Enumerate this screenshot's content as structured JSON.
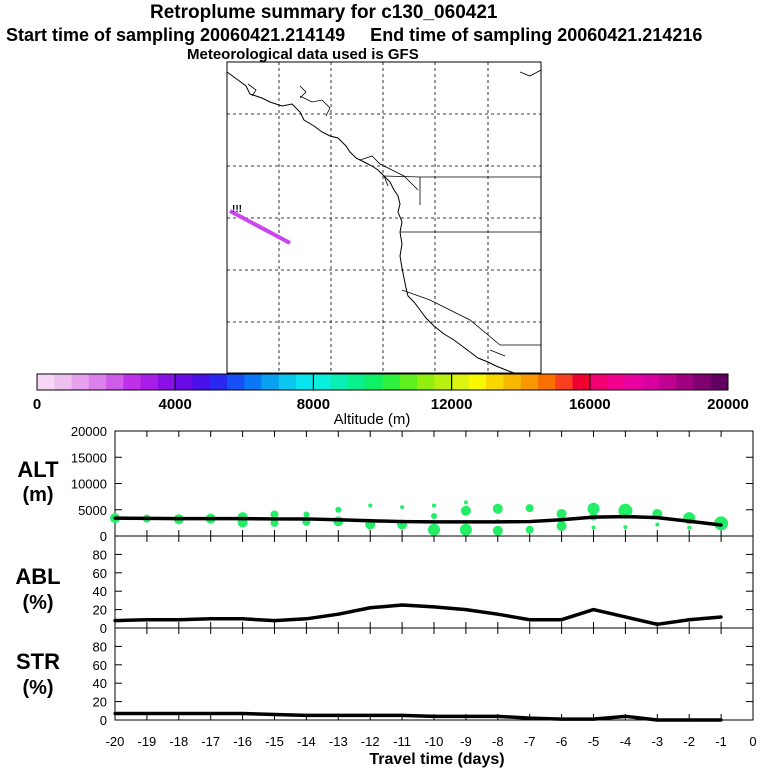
{
  "header": {
    "title": "Retroplume summary for c130_060421",
    "sampling": "Start time of sampling 20060421.214149     End time of sampling 20060421.214216",
    "met": "Meteorological data used is GFS"
  },
  "map": {
    "trajectory_label": "!!!",
    "trajectory_color": "#cc44ee"
  },
  "colorbar": {
    "title": "Altitude (m)",
    "tick_labels": [
      "0",
      "4000",
      "8000",
      "12000",
      "16000",
      "20000"
    ],
    "colors": [
      "#f6d7f6",
      "#eec0f0",
      "#e6a0ee",
      "#dc80ec",
      "#cf5ce8",
      "#c030e8",
      "#a81ee8",
      "#8a10e6",
      "#6a0ae4",
      "#4a10e8",
      "#2a28f0",
      "#1450f4",
      "#0a78f4",
      "#0aa0f2",
      "#0ac8f0",
      "#0ae6f0",
      "#0af0dc",
      "#0af0b4",
      "#0af08c",
      "#10f064",
      "#30f040",
      "#60f020",
      "#90f010",
      "#b8f010",
      "#dcf410",
      "#f8f800",
      "#f8d800",
      "#f8b800",
      "#f89800",
      "#f87000",
      "#f84020",
      "#f00030",
      "#f00070",
      "#f0008c",
      "#e800a0",
      "#d800a0",
      "#c00090",
      "#a00080",
      "#800070",
      "#600060"
    ]
  },
  "panels": {
    "alt": {
      "label": "ALT",
      "unit": "(m)"
    },
    "abl": {
      "label": "ABL",
      "unit": "(%)"
    },
    "str": {
      "label": "STR",
      "unit": "(%)"
    }
  },
  "xaxis": {
    "title": "Travel time (days)"
  },
  "chart_data": [
    {
      "type": "line",
      "title": "ALT",
      "xlabel": "Travel time (days)",
      "ylabel": "ALT (m)",
      "xlim": [
        -20,
        0
      ],
      "ylim": [
        0,
        20000
      ],
      "yticks": [
        "0",
        "5000",
        "10000",
        "15000",
        "20000"
      ],
      "x": [
        -20,
        -19,
        -18,
        -17,
        -16,
        -15,
        -14,
        -13,
        -12,
        -11,
        -10,
        -9,
        -8,
        -7,
        -6,
        -5,
        -4,
        -3,
        -2,
        -1
      ],
      "values": [
        3400,
        3350,
        3300,
        3300,
        3300,
        3250,
        3250,
        3100,
        2900,
        2750,
        2700,
        2700,
        2700,
        2750,
        3100,
        3600,
        3700,
        3500,
        2800,
        2100
      ],
      "dots": [
        {
          "x": -20,
          "y": 3400,
          "r": 5
        },
        {
          "x": -19,
          "y": 3300,
          "r": 4
        },
        {
          "x": -18,
          "y": 3200,
          "r": 5
        },
        {
          "x": -17,
          "y": 3300,
          "r": 5
        },
        {
          "x": -16,
          "y": 3600,
          "r": 5
        },
        {
          "x": -16,
          "y": 2600,
          "r": 5
        },
        {
          "x": -15,
          "y": 4100,
          "r": 4
        },
        {
          "x": -15,
          "y": 2500,
          "r": 4
        },
        {
          "x": -14,
          "y": 4100,
          "r": 3
        },
        {
          "x": -14,
          "y": 2700,
          "r": 4
        },
        {
          "x": -13,
          "y": 5000,
          "r": 3
        },
        {
          "x": -13,
          "y": 2800,
          "r": 5
        },
        {
          "x": -12,
          "y": 5800,
          "r": 2
        },
        {
          "x": -12,
          "y": 2200,
          "r": 5
        },
        {
          "x": -11,
          "y": 5500,
          "r": 2
        },
        {
          "x": -11,
          "y": 2200,
          "r": 5
        },
        {
          "x": -10,
          "y": 5800,
          "r": 2
        },
        {
          "x": -10,
          "y": 3800,
          "r": 3
        },
        {
          "x": -10,
          "y": 1200,
          "r": 6
        },
        {
          "x": -9,
          "y": 6400,
          "r": 2
        },
        {
          "x": -9,
          "y": 4800,
          "r": 5
        },
        {
          "x": -9,
          "y": 1200,
          "r": 6
        },
        {
          "x": -8,
          "y": 5200,
          "r": 5
        },
        {
          "x": -8,
          "y": 2800,
          "r": 2
        },
        {
          "x": -8,
          "y": 1000,
          "r": 5
        },
        {
          "x": -7,
          "y": 5300,
          "r": 4
        },
        {
          "x": -7,
          "y": 1200,
          "r": 4
        },
        {
          "x": -6,
          "y": 4200,
          "r": 5
        },
        {
          "x": -6,
          "y": 1900,
          "r": 5
        },
        {
          "x": -5,
          "y": 5200,
          "r": 6
        },
        {
          "x": -5,
          "y": 3700,
          "r": 4
        },
        {
          "x": -5,
          "y": 1600,
          "r": 2
        },
        {
          "x": -4,
          "y": 4800,
          "r": 7
        },
        {
          "x": -4,
          "y": 1700,
          "r": 2
        },
        {
          "x": -3,
          "y": 4200,
          "r": 5
        },
        {
          "x": -3,
          "y": 2200,
          "r": 2
        },
        {
          "x": -2,
          "y": 3400,
          "r": 6
        },
        {
          "x": -2,
          "y": 1600,
          "r": 2
        },
        {
          "x": -1,
          "y": 2400,
          "r": 7
        }
      ],
      "dot_color": "#22ee66"
    },
    {
      "type": "line",
      "title": "ABL",
      "xlabel": "Travel time (days)",
      "ylabel": "ABL (%)",
      "xlim": [
        -20,
        0
      ],
      "ylim": [
        0,
        100
      ],
      "yticks": [
        "0",
        "20",
        "40",
        "60",
        "80"
      ],
      "x": [
        -20,
        -19,
        -18,
        -17,
        -16,
        -15,
        -14,
        -13,
        -12,
        -11,
        -10,
        -9,
        -8,
        -7,
        -6,
        -5,
        -4,
        -3,
        -2,
        -1
      ],
      "values": [
        8,
        9,
        9,
        10,
        10,
        8,
        10,
        15,
        22,
        25,
        23,
        20,
        15,
        9,
        9,
        20,
        12,
        4,
        9,
        12
      ]
    },
    {
      "type": "line",
      "title": "STR",
      "xlabel": "Travel time (days)",
      "ylabel": "STR (%)",
      "xlim": [
        -20,
        0
      ],
      "ylim": [
        0,
        100
      ],
      "yticks": [
        "0",
        "20",
        "40",
        "60",
        "80"
      ],
      "x": [
        -20,
        -19,
        -18,
        -17,
        -16,
        -15,
        -14,
        -13,
        -12,
        -11,
        -10,
        -9,
        -8,
        -7,
        -6,
        -5,
        -4,
        -3,
        -2,
        -1
      ],
      "values": [
        7,
        7,
        7,
        7,
        7,
        6,
        5,
        5,
        5,
        5,
        4,
        4,
        4,
        2,
        1,
        1,
        4,
        0,
        0,
        0
      ]
    }
  ],
  "xticks": [
    "-20",
    "-19",
    "-18",
    "-17",
    "-16",
    "-15",
    "-14",
    "-13",
    "-12",
    "-11",
    "-10",
    "-9",
    "-8",
    "-7",
    "-6",
    "-5",
    "-4",
    "-3",
    "-2",
    "-1",
    "0"
  ]
}
